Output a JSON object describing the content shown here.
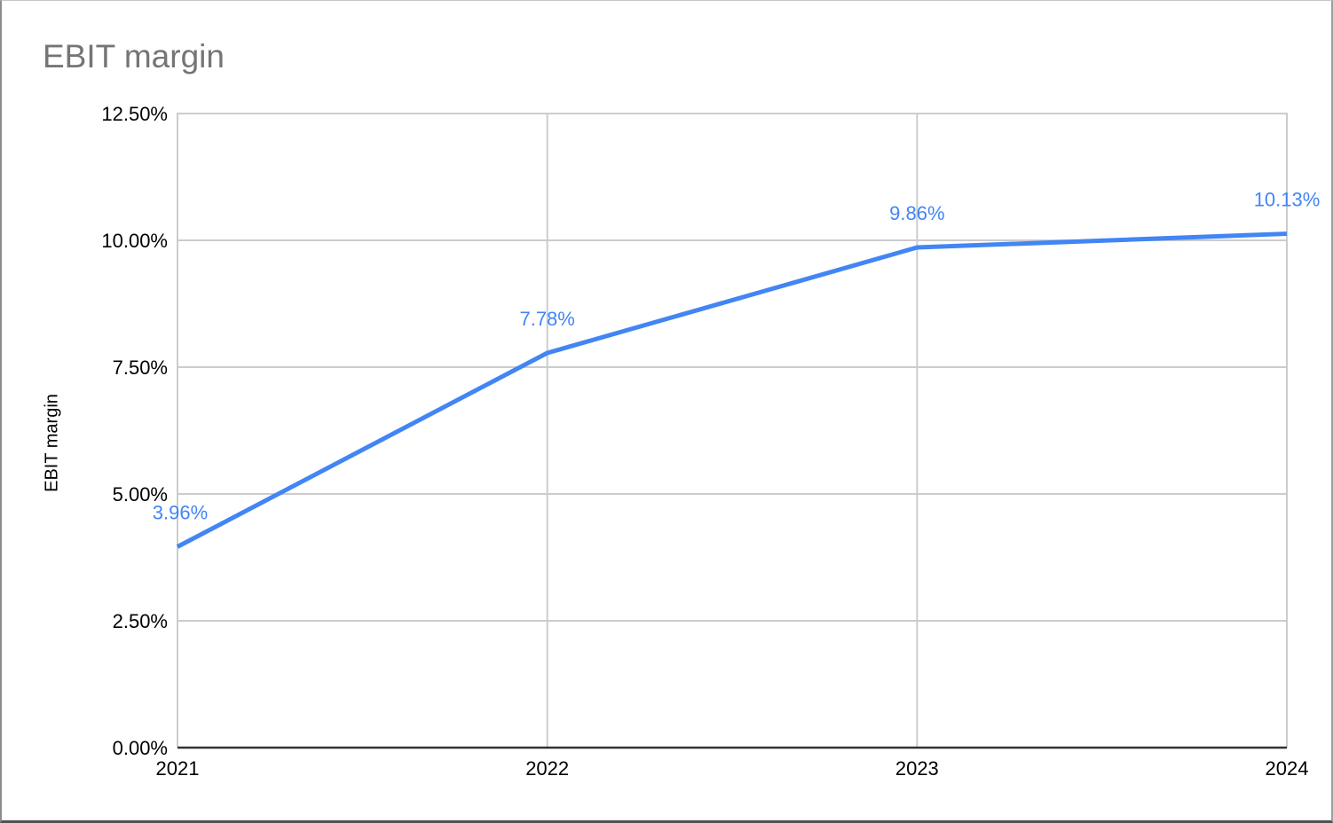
{
  "header": {
    "title": "EBIT margin"
  },
  "style": {
    "title_color": "#757575",
    "series_color": "#4285f4",
    "data_label_color": "#4285f4",
    "gridline_color": "#cccccc",
    "plot_border_color": "#cccccc",
    "axis_line_color": "#333333",
    "tick_label_color": "#000000",
    "background": "#ffffff"
  },
  "chart_data": {
    "type": "line",
    "title": "EBIT margin",
    "categories": [
      "2021",
      "2022",
      "2023",
      "2024"
    ],
    "values": [
      3.96,
      7.78,
      9.86,
      10.13
    ],
    "data_labels": [
      "3.96%",
      "7.78%",
      "9.86%",
      "10.13%"
    ],
    "xlabel": "",
    "ylabel": "EBIT margin",
    "ylim": [
      0,
      12.5
    ],
    "y_ticks": [
      "0.00%",
      "2.50%",
      "5.00%",
      "7.50%",
      "10.00%",
      "12.50%"
    ],
    "y_tick_values": [
      0,
      2.5,
      5,
      7.5,
      10,
      12.5
    ],
    "grid": true,
    "legend_position": "none"
  }
}
